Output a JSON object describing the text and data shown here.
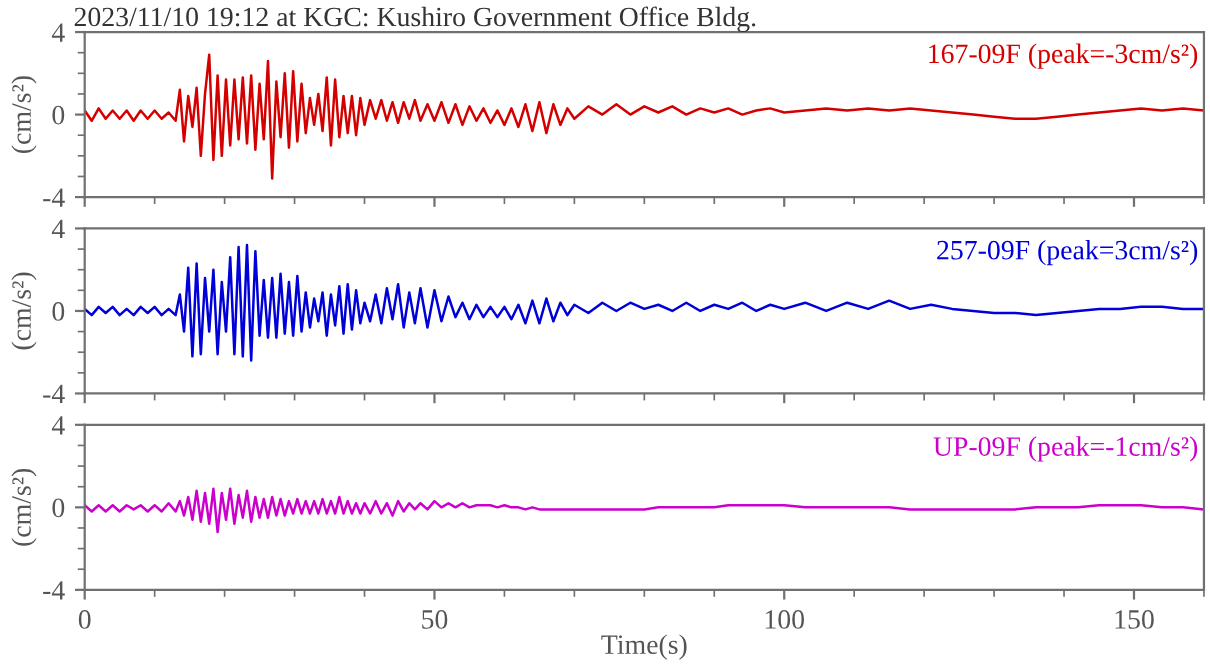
{
  "chart_data": [
    {
      "type": "line",
      "title": "2023/11/10 19:12 at KGC: Kushiro Government Office Bldg.",
      "ylabel": "(cm/s²)",
      "xlim": [
        0,
        160
      ],
      "xticks": [
        0,
        50,
        100,
        150
      ],
      "ylim": [
        -4,
        4
      ],
      "yticks": [
        -4,
        0,
        4
      ],
      "tick_labels": "y",
      "x": [
        0,
        1,
        2,
        3,
        4,
        5,
        6,
        7,
        8,
        9,
        10,
        11,
        12,
        13,
        13.6,
        14.2,
        14.8,
        15.4,
        16,
        16.6,
        17.2,
        17.8,
        18.4,
        19,
        19.6,
        20.2,
        20.8,
        21.4,
        22,
        22.6,
        23.2,
        23.8,
        24.4,
        25,
        25.6,
        26.2,
        26.8,
        27.4,
        28,
        28.6,
        29.2,
        29.8,
        30.4,
        31,
        31.6,
        32.2,
        32.8,
        33.4,
        34,
        34.6,
        35.2,
        35.8,
        36.4,
        37,
        37.6,
        38.2,
        38.8,
        39.4,
        40,
        40.8,
        41.6,
        42.4,
        43.2,
        44,
        44.8,
        45.6,
        46.4,
        47.2,
        48,
        49,
        50,
        51,
        52,
        53,
        54,
        55,
        56,
        57,
        58,
        59,
        60,
        61,
        62,
        63,
        64,
        65,
        66,
        67,
        68,
        69,
        70,
        72,
        74,
        76,
        78,
        80,
        82,
        84,
        86,
        88,
        90,
        92,
        94,
        96,
        98,
        100,
        103,
        106,
        109,
        112,
        115,
        118,
        121,
        124,
        127,
        130,
        133,
        136,
        139,
        142,
        145,
        148,
        151,
        154,
        157,
        160
      ],
      "series": [
        {
          "name": "167-09F (peak=-3cm/s²)",
          "color": "#d40000",
          "values": [
            0.2,
            -0.3,
            0.3,
            -0.2,
            0.2,
            -0.2,
            0.2,
            -0.3,
            0.2,
            -0.2,
            0.2,
            -0.2,
            0.1,
            -0.3,
            1.2,
            -1.3,
            0.9,
            -0.6,
            1.3,
            -2.0,
            1.0,
            2.9,
            -2.2,
            1.9,
            -2.0,
            1.7,
            -1.5,
            1.7,
            -1.2,
            1.8,
            -1.4,
            1.9,
            -1.7,
            1.5,
            -1.2,
            2.6,
            -3.1,
            1.6,
            -1.1,
            2.0,
            -1.6,
            2.1,
            -1.3,
            1.5,
            -0.9,
            0.8,
            -0.5,
            1.0,
            -0.8,
            1.8,
            -1.5,
            1.7,
            -1.1,
            0.9,
            -0.9,
            0.9,
            -1.0,
            0.8,
            -0.5,
            0.7,
            -0.2,
            0.7,
            -0.3,
            0.6,
            -0.4,
            0.6,
            -0.2,
            0.7,
            -0.3,
            0.5,
            -0.3,
            0.6,
            -0.4,
            0.5,
            -0.5,
            0.4,
            -0.3,
            0.3,
            -0.4,
            0.2,
            -0.5,
            0.3,
            -0.6,
            0.5,
            -0.8,
            0.6,
            -0.9,
            0.5,
            -0.5,
            0.3,
            -0.2,
            0.4,
            0.0,
            0.5,
            0.0,
            0.4,
            0.1,
            0.4,
            0.0,
            0.3,
            0.1,
            0.3,
            0.0,
            0.2,
            0.3,
            0.1,
            0.2,
            0.3,
            0.2,
            0.3,
            0.2,
            0.3,
            0.2,
            0.1,
            0.0,
            -0.1,
            -0.2,
            -0.2,
            -0.1,
            0.0,
            0.1,
            0.2,
            0.3,
            0.2,
            0.3,
            0.2
          ]
        }
      ]
    },
    {
      "type": "line",
      "ylabel": "(cm/s²)",
      "xlim": [
        0,
        160
      ],
      "xticks": [
        0,
        50,
        100,
        150
      ],
      "ylim": [
        -4,
        4
      ],
      "yticks": [
        -4,
        0,
        4
      ],
      "tick_labels": "y",
      "x": [
        0,
        1,
        2,
        3,
        4,
        5,
        6,
        7,
        8,
        9,
        10,
        11,
        12,
        13,
        13.6,
        14.2,
        14.8,
        15.4,
        16,
        16.6,
        17.2,
        17.8,
        18.4,
        19,
        19.6,
        20.2,
        20.8,
        21.4,
        22,
        22.6,
        23.2,
        23.8,
        24.4,
        25,
        25.6,
        26.2,
        26.8,
        27.4,
        28,
        28.6,
        29.2,
        29.8,
        30.4,
        31,
        31.6,
        32.2,
        32.8,
        33.4,
        34,
        34.6,
        35.2,
        35.8,
        36.4,
        37,
        37.6,
        38.2,
        38.8,
        39.4,
        40,
        40.8,
        41.6,
        42.4,
        43.2,
        44,
        44.8,
        45.6,
        46.4,
        47.2,
        48,
        49,
        50,
        51,
        52,
        53,
        54,
        55,
        56,
        57,
        58,
        59,
        60,
        61,
        62,
        63,
        64,
        65,
        66,
        67,
        68,
        69,
        70,
        72,
        74,
        76,
        78,
        80,
        82,
        84,
        86,
        88,
        90,
        92,
        94,
        96,
        98,
        100,
        103,
        106,
        109,
        112,
        115,
        118,
        121,
        124,
        127,
        130,
        133,
        136,
        139,
        142,
        145,
        148,
        151,
        154,
        157,
        160
      ],
      "series": [
        {
          "name": "257-09F (peak=3cm/s²)",
          "color": "#0000d8",
          "values": [
            0.1,
            -0.2,
            0.2,
            -0.1,
            0.2,
            -0.2,
            0.1,
            -0.2,
            0.2,
            -0.1,
            0.2,
            -0.2,
            0.1,
            -0.2,
            0.8,
            -1.0,
            2.1,
            -2.2,
            2.3,
            -2.1,
            1.6,
            -1.0,
            2.0,
            -2.1,
            1.4,
            -1.0,
            2.6,
            -2.1,
            3.1,
            -2.2,
            3.2,
            -2.4,
            2.9,
            -1.2,
            1.5,
            -1.3,
            1.6,
            -1.3,
            1.8,
            -1.1,
            1.4,
            -1.2,
            1.7,
            -1.0,
            0.9,
            -0.8,
            0.6,
            -0.5,
            0.9,
            -1.2,
            0.8,
            -0.7,
            1.2,
            -1.1,
            1.3,
            -0.9,
            1.0,
            -0.6,
            0.4,
            -0.5,
            0.8,
            -0.6,
            1.1,
            -0.4,
            1.3,
            -0.8,
            0.9,
            -0.6,
            1.1,
            -0.8,
            1.0,
            -0.5,
            0.7,
            -0.3,
            0.4,
            -0.4,
            0.3,
            -0.3,
            0.2,
            -0.3,
            0.2,
            -0.4,
            0.3,
            -0.6,
            0.5,
            -0.6,
            0.6,
            -0.5,
            0.4,
            -0.2,
            0.3,
            -0.1,
            0.4,
            0.0,
            0.4,
            0.1,
            0.3,
            0.0,
            0.4,
            0.0,
            0.3,
            0.1,
            0.4,
            0.0,
            0.3,
            0.1,
            0.4,
            0.0,
            0.4,
            0.1,
            0.5,
            0.1,
            0.3,
            0.1,
            0.0,
            -0.1,
            -0.1,
            -0.2,
            -0.1,
            0.0,
            0.1,
            0.1,
            0.2,
            0.2,
            0.1,
            0.1
          ]
        }
      ]
    },
    {
      "type": "line",
      "xlabel": "Time(s)",
      "ylabel": "(cm/s²)",
      "xlim": [
        0,
        160
      ],
      "xticks": [
        0,
        50,
        100,
        150
      ],
      "ylim": [
        -4,
        4
      ],
      "yticks": [
        -4,
        0,
        4
      ],
      "x": [
        0,
        1,
        2,
        3,
        4,
        5,
        6,
        7,
        8,
        9,
        10,
        11,
        12,
        13,
        13.6,
        14.2,
        14.8,
        15.4,
        16,
        16.6,
        17.2,
        17.8,
        18.4,
        19,
        19.6,
        20.2,
        20.8,
        21.4,
        22,
        22.6,
        23.2,
        23.8,
        24.4,
        25,
        25.6,
        26.2,
        26.8,
        27.4,
        28,
        28.6,
        29.2,
        29.8,
        30.4,
        31,
        31.6,
        32.2,
        32.8,
        33.4,
        34,
        34.6,
        35.2,
        35.8,
        36.4,
        37,
        37.6,
        38.2,
        38.8,
        39.4,
        40,
        40.8,
        41.6,
        42.4,
        43.2,
        44,
        44.8,
        45.6,
        46.4,
        47.2,
        48,
        49,
        50,
        51,
        52,
        53,
        54,
        55,
        56,
        57,
        58,
        59,
        60,
        61,
        62,
        63,
        64,
        65,
        66,
        67,
        68,
        69,
        70,
        72,
        74,
        76,
        78,
        80,
        82,
        84,
        86,
        88,
        90,
        92,
        94,
        96,
        98,
        100,
        103,
        106,
        109,
        112,
        115,
        118,
        121,
        124,
        127,
        130,
        133,
        136,
        139,
        142,
        145,
        148,
        151,
        154,
        157,
        160
      ],
      "series": [
        {
          "name": "UP-09F (peak=-1cm/s²)",
          "color": "#cc00cc",
          "values": [
            0.1,
            -0.2,
            0.1,
            -0.2,
            0.1,
            -0.2,
            0.1,
            -0.1,
            0.1,
            -0.2,
            0.1,
            -0.2,
            0.2,
            -0.2,
            0.3,
            -0.4,
            0.5,
            -0.6,
            0.8,
            -0.7,
            0.7,
            -0.8,
            0.9,
            -1.2,
            0.7,
            -0.6,
            0.9,
            -0.8,
            0.6,
            -0.5,
            0.8,
            -0.7,
            0.5,
            -0.5,
            0.4,
            -0.5,
            0.5,
            -0.4,
            0.4,
            -0.4,
            0.3,
            -0.3,
            0.4,
            -0.3,
            0.3,
            -0.3,
            0.3,
            -0.3,
            0.4,
            -0.3,
            0.3,
            -0.3,
            0.5,
            -0.3,
            0.3,
            -0.3,
            0.2,
            -0.3,
            0.2,
            -0.3,
            0.3,
            -0.3,
            0.2,
            -0.4,
            0.3,
            -0.2,
            0.2,
            -0.1,
            0.2,
            -0.1,
            0.3,
            0.0,
            0.2,
            0.0,
            0.2,
            0.0,
            0.1,
            0.1,
            0.1,
            0.0,
            0.1,
            0.0,
            0.0,
            -0.1,
            0.0,
            -0.1,
            -0.1,
            -0.1,
            -0.1,
            -0.1,
            -0.1,
            -0.1,
            -0.1,
            -0.1,
            -0.1,
            -0.1,
            0.0,
            0.0,
            0.0,
            0.0,
            0.0,
            0.1,
            0.1,
            0.1,
            0.1,
            0.1,
            0.0,
            0.0,
            0.0,
            0.0,
            0.0,
            -0.1,
            -0.1,
            -0.1,
            -0.1,
            -0.1,
            -0.1,
            0.0,
            0.0,
            0.0,
            0.1,
            0.1,
            0.1,
            0.0,
            0.0,
            -0.1
          ]
        }
      ]
    }
  ]
}
